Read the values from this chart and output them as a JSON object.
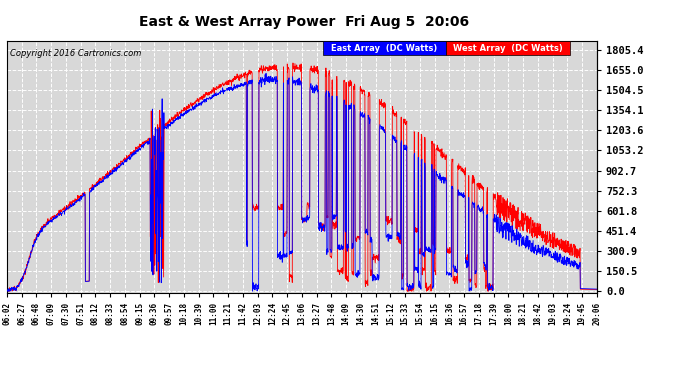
{
  "title": "East & West Array Power  Fri Aug 5  20:06",
  "copyright": "Copyright 2016 Cartronics.com",
  "legend_east": "East Array  (DC Watts)",
  "legend_west": "West Array  (DC Watts)",
  "east_color": "#0000ff",
  "west_color": "#ff0000",
  "bg_color": "#ffffff",
  "plot_bg_color": "#d8d8d8",
  "grid_color": "#ffffff",
  "yticks": [
    0.0,
    150.5,
    300.9,
    451.4,
    601.8,
    752.3,
    902.7,
    1053.2,
    1203.6,
    1354.1,
    1504.5,
    1655.0,
    1805.4
  ],
  "ymax": 1870,
  "ymin": -10,
  "xtick_labels": [
    "06:02",
    "06:27",
    "06:48",
    "07:09",
    "07:30",
    "07:51",
    "08:12",
    "08:33",
    "08:54",
    "09:15",
    "09:36",
    "09:57",
    "10:18",
    "10:39",
    "11:00",
    "11:21",
    "11:42",
    "12:03",
    "12:24",
    "12:45",
    "13:06",
    "13:27",
    "13:48",
    "14:09",
    "14:30",
    "14:51",
    "15:12",
    "15:33",
    "15:54",
    "16:15",
    "16:36",
    "16:57",
    "17:18",
    "17:39",
    "18:00",
    "18:21",
    "18:42",
    "19:03",
    "19:24",
    "19:45",
    "20:06"
  ]
}
